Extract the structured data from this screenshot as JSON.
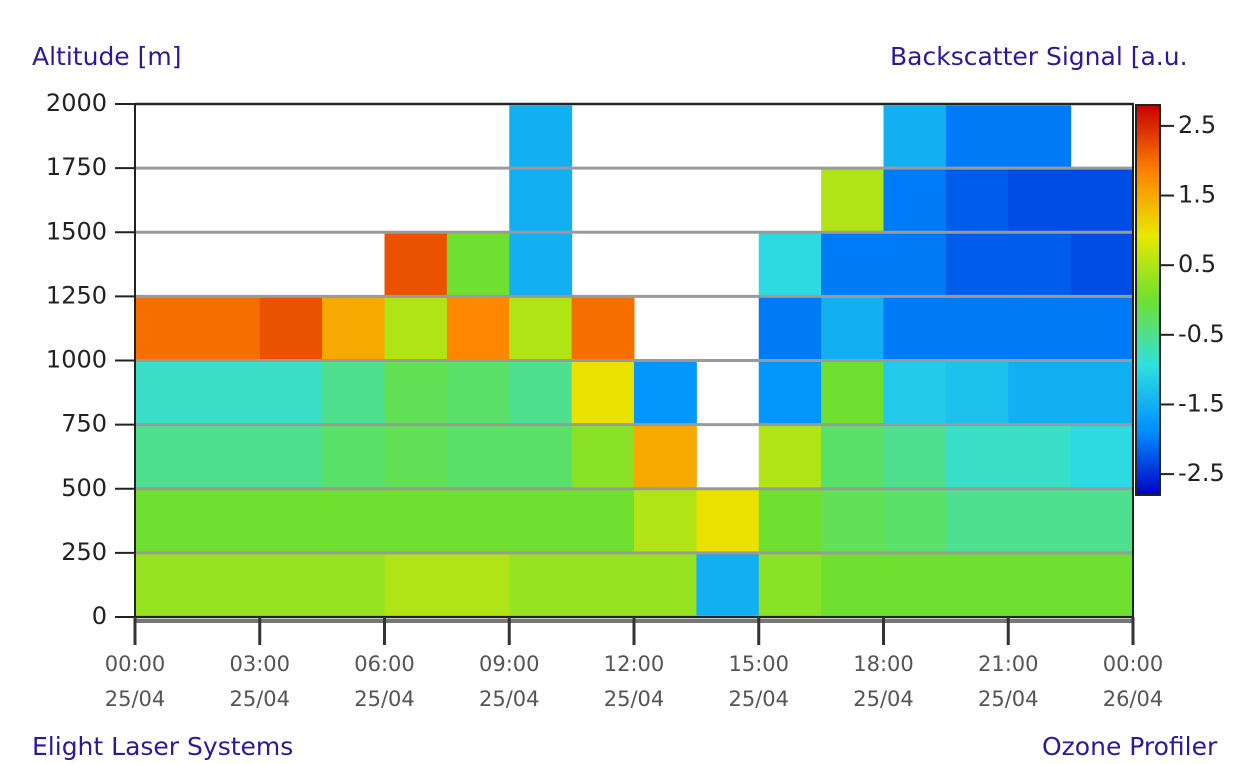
{
  "chart_data": {
    "type": "heatmap",
    "y_label": "Altitude [m]",
    "colorbar_label": "Backscatter Signal [a.u.",
    "footer_left": "Elight Laser Systems",
    "footer_right": "Ozone Profiler",
    "xlim": [
      0,
      24
    ],
    "xticks": [
      {
        "value": 0,
        "label": "00:00",
        "date": "25/04"
      },
      {
        "value": 3,
        "label": "03:00",
        "date": "25/04"
      },
      {
        "value": 6,
        "label": "06:00",
        "date": "25/04"
      },
      {
        "value": 9,
        "label": "09:00",
        "date": "25/04"
      },
      {
        "value": 12,
        "label": "12:00",
        "date": "25/04"
      },
      {
        "value": 15,
        "label": "15:00",
        "date": "25/04"
      },
      {
        "value": 18,
        "label": "18:00",
        "date": "25/04"
      },
      {
        "value": 21,
        "label": "21:00",
        "date": "25/04"
      },
      {
        "value": 24,
        "label": "00:00",
        "date": "26/04"
      }
    ],
    "ylim": [
      0,
      2000
    ],
    "yticks": [
      0,
      250,
      500,
      750,
      1000,
      1250,
      1500,
      1750,
      2000
    ],
    "grid": true,
    "x_bins": [
      0,
      1.5,
      3,
      4.5,
      6,
      7.5,
      9,
      10.5,
      12,
      13.5,
      15,
      16.5,
      18,
      19.5,
      21,
      22.5,
      24
    ],
    "y_bins": [
      0,
      250,
      500,
      750,
      1000,
      1250,
      1500,
      1750,
      2000
    ],
    "z": [
      [
        0.3,
        0.3,
        0.3,
        0.3,
        0.5,
        0.5,
        0.3,
        0.3,
        0.3,
        -1.5,
        0.2,
        0,
        0,
        0,
        0,
        0
      ],
      [
        0,
        0,
        0,
        0,
        0,
        0,
        0,
        0,
        0.5,
        1.0,
        0,
        -0.2,
        -0.3,
        -0.5,
        -0.5,
        -0.5
      ],
      [
        -0.5,
        -0.5,
        -0.5,
        -0.3,
        -0.2,
        -0.3,
        -0.3,
        0.2,
        1.5,
        null,
        0.5,
        -0.3,
        -0.5,
        -0.8,
        -0.8,
        -1.0
      ],
      [
        -0.8,
        -0.8,
        -0.8,
        -0.5,
        -0.2,
        -0.3,
        -0.5,
        1.0,
        -1.8,
        null,
        -1.8,
        0,
        -1.2,
        -1.3,
        -1.5,
        -1.5
      ],
      [
        2.0,
        2.0,
        2.2,
        1.5,
        0.5,
        1.8,
        0.5,
        2.0,
        null,
        null,
        -2.0,
        -1.5,
        -2.0,
        -2.0,
        -2.0,
        -2.0
      ],
      [
        null,
        null,
        null,
        null,
        2.2,
        0.0,
        -1.5,
        null,
        null,
        null,
        -1.0,
        -2.0,
        -2.0,
        -2.2,
        -2.2,
        -2.3
      ],
      [
        null,
        null,
        null,
        null,
        null,
        null,
        -1.5,
        null,
        null,
        null,
        null,
        0.5,
        -2.0,
        -2.2,
        -2.3,
        -2.3
      ],
      [
        null,
        null,
        null,
        null,
        null,
        null,
        -1.5,
        null,
        null,
        null,
        null,
        null,
        -1.5,
        -2.0,
        -2.0,
        null
      ]
    ],
    "zlim": [
      -2.8,
      2.8
    ],
    "zticks": [
      2.5,
      1.5,
      0.5,
      -0.5,
      -1.5,
      -2.5
    ],
    "colorscale": [
      "#0000c8",
      "#0090ff",
      "#30e0e0",
      "#70e030",
      "#e8e800",
      "#ff8000",
      "#c80000"
    ]
  }
}
